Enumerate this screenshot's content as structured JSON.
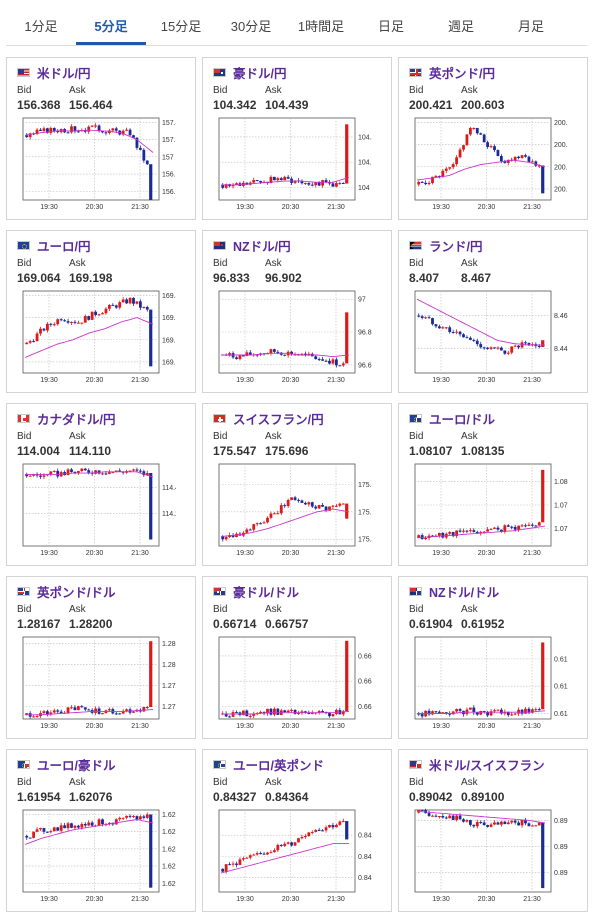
{
  "tabs": [
    {
      "label": "1分足",
      "active": false
    },
    {
      "label": "5分足",
      "active": true
    },
    {
      "label": "15分足",
      "active": false
    },
    {
      "label": "30分足",
      "active": false
    },
    {
      "label": "1時間足",
      "active": false
    },
    {
      "label": "日足",
      "active": false
    },
    {
      "label": "週足",
      "active": false
    },
    {
      "label": "月足",
      "active": false
    }
  ],
  "labels": {
    "bid": "Bid",
    "ask": "Ask"
  },
  "colors": {
    "up": "#dd1a1a",
    "down": "#1a2a99",
    "ma": "#cc33cc",
    "pair": "#5a2a9a",
    "tab_active": "#1e5aa8"
  },
  "cards": [
    {
      "pair": "米ドル/円",
      "flag": "us",
      "bid": "156.368",
      "ask": "156.464",
      "chart_data": {
        "type": "candlestick",
        "x_ticks": [
          "19:30",
          "20:30",
          "21:30"
        ],
        "y_ticks": [
          "157.4",
          "157.2",
          "157",
          "156.8",
          "156.6"
        ],
        "ylim": [
          156.5,
          157.45
        ],
        "trend": [
          157.25,
          157.3,
          157.32,
          157.32,
          157.33,
          157.3,
          157.28,
          156.9,
          156.5
        ],
        "ma": [
          157.25,
          157.28,
          157.3,
          157.3,
          157.31,
          157.3,
          157.28,
          157.2,
          157.05
        ],
        "last_spike": "down"
      }
    },
    {
      "pair": "豪ドル/円",
      "flag": "au",
      "bid": "104.342",
      "ask": "104.439",
      "chart_data": {
        "type": "candlestick",
        "x_ticks": [
          "19:30",
          "20:30",
          "21:30"
        ],
        "y_ticks": [
          "104.4",
          "104.2",
          "104"
        ],
        "ylim": [
          103.9,
          104.55
        ],
        "trend": [
          104.02,
          104.02,
          104.04,
          104.07,
          104.06,
          104.04,
          104.03,
          104.02,
          104.5
        ],
        "ma": [
          104.02,
          104.02,
          104.03,
          104.04,
          104.05,
          104.05,
          104.04,
          104.04,
          104.08
        ],
        "last_spike": "up"
      }
    },
    {
      "pair": "英ポンド/円",
      "flag": "gb",
      "bid": "200.421",
      "ask": "200.603",
      "chart_data": {
        "type": "candlestick",
        "x_ticks": [
          "19:30",
          "20:30",
          "21:30"
        ],
        "y_ticks": [
          "200.9",
          "200.8",
          "200.7",
          "200.6"
        ],
        "ylim": [
          200.55,
          200.92
        ],
        "trend": [
          200.62,
          200.65,
          200.7,
          200.88,
          200.8,
          200.72,
          200.76,
          200.7,
          200.58
        ],
        "ma": [
          200.64,
          200.65,
          200.66,
          200.69,
          200.71,
          200.72,
          200.73,
          200.72,
          200.7
        ],
        "last_spike": "down"
      }
    },
    {
      "pair": "ユーロ/円",
      "flag": "eu",
      "bid": "169.064",
      "ask": "169.198",
      "chart_data": {
        "type": "candlestick",
        "x_ticks": [
          "19:30",
          "20:30",
          "21:30"
        ],
        "y_ticks": [
          "169.4",
          "169.3",
          "169.2",
          "169.1"
        ],
        "ylim": [
          169.05,
          169.42
        ],
        "trend": [
          169.18,
          169.25,
          169.3,
          169.28,
          169.32,
          169.35,
          169.38,
          169.33,
          169.08
        ],
        "ma": [
          169.12,
          169.15,
          169.18,
          169.2,
          169.23,
          169.25,
          169.28,
          169.3,
          169.27
        ],
        "last_spike": "down"
      }
    },
    {
      "pair": "NZドル/円",
      "flag": "nz",
      "bid": "96.833",
      "ask": "96.902",
      "chart_data": {
        "type": "candlestick",
        "x_ticks": [
          "19:30",
          "20:30",
          "21:30"
        ],
        "y_ticks": [
          "97",
          "96.8",
          "96.6"
        ],
        "ylim": [
          96.55,
          97.05
        ],
        "trend": [
          96.66,
          96.65,
          96.67,
          96.68,
          96.67,
          96.65,
          96.63,
          96.6,
          96.92
        ],
        "ma": [
          96.66,
          96.66,
          96.66,
          96.67,
          96.67,
          96.66,
          96.66,
          96.65,
          96.66
        ],
        "last_spike": "up"
      }
    },
    {
      "pair": "ランド/円",
      "flag": "za",
      "bid": "8.407",
      "ask": "8.467",
      "chart_data": {
        "type": "candlestick",
        "x_ticks": [
          "19:30",
          "20:30",
          "21:30"
        ],
        "y_ticks": [
          "8.46",
          "8.44"
        ],
        "ylim": [
          8.425,
          8.475
        ],
        "trend": [
          8.46,
          8.455,
          8.45,
          8.445,
          8.44,
          8.438,
          8.442,
          8.44,
          8.445
        ],
        "ma": [
          8.47,
          8.465,
          8.46,
          8.455,
          8.45,
          8.445,
          8.443,
          8.442,
          8.442
        ],
        "last_spike": "up"
      }
    },
    {
      "pair": "カナダドル/円",
      "flag": "ca",
      "bid": "114.004",
      "ask": "114.110",
      "chart_data": {
        "type": "candlestick",
        "x_ticks": [
          "19:30",
          "20:30",
          "21:30"
        ],
        "y_ticks": [
          "114.4",
          "114.2"
        ],
        "ylim": [
          113.95,
          114.58
        ],
        "trend": [
          114.5,
          114.49,
          114.51,
          114.52,
          114.53,
          114.52,
          114.53,
          114.5,
          114.0
        ],
        "ma": [
          114.5,
          114.5,
          114.5,
          114.51,
          114.51,
          114.52,
          114.52,
          114.52,
          114.48
        ],
        "last_spike": "down"
      }
    },
    {
      "pair": "スイスフラン/円",
      "flag": "ch",
      "bid": "175.547",
      "ask": "175.696",
      "chart_data": {
        "type": "candlestick",
        "x_ticks": [
          "19:30",
          "20:30",
          "21:30"
        ],
        "y_ticks": [
          "175.8",
          "175.6",
          "175.4"
        ],
        "ylim": [
          175.35,
          175.95
        ],
        "trend": [
          175.42,
          175.45,
          175.5,
          175.58,
          175.7,
          175.66,
          175.63,
          175.65,
          175.55
        ],
        "ma": [
          175.42,
          175.43,
          175.45,
          175.48,
          175.52,
          175.56,
          175.6,
          175.62,
          175.6
        ],
        "last_spike": "up"
      }
    },
    {
      "pair": "ユーロ/ドル",
      "flag": "eu",
      "flag2": "us",
      "bid": "1.08107",
      "ask": "1.08135",
      "chart_data": {
        "type": "candlestick",
        "x_ticks": [
          "19:30",
          "20:30",
          "21:30"
        ],
        "y_ticks": [
          "1.08",
          "1.078",
          "1.076"
        ],
        "ylim": [
          1.0745,
          1.0815
        ],
        "trend": [
          1.0752,
          1.0754,
          1.0756,
          1.0757,
          1.0758,
          1.076,
          1.0762,
          1.0764,
          1.081
        ],
        "ma": [
          1.0752,
          1.0753,
          1.0754,
          1.0755,
          1.0756,
          1.0757,
          1.0758,
          1.076,
          1.0762
        ],
        "last_spike": "up"
      }
    },
    {
      "pair": "英ポンド/ドル",
      "flag": "gb",
      "flag2": "us",
      "bid": "1.28167",
      "ask": "1.28200",
      "chart_data": {
        "type": "candlestick",
        "x_ticks": [
          "19:30",
          "20:30",
          "21:30"
        ],
        "y_ticks": [
          "1.282",
          "1.28",
          "1.278",
          "1.276"
        ],
        "ylim": [
          1.2748,
          1.2826
        ],
        "trend": [
          1.2752,
          1.2753,
          1.2755,
          1.2758,
          1.2756,
          1.2755,
          1.2756,
          1.2758,
          1.2822
        ],
        "ma": [
          1.2752,
          1.2752,
          1.2753,
          1.2754,
          1.2755,
          1.2755,
          1.2755,
          1.2756,
          1.2757
        ],
        "last_spike": "up"
      }
    },
    {
      "pair": "豪ドル/ドル",
      "flag": "au",
      "flag2": "us",
      "bid": "0.66714",
      "ask": "0.66757",
      "chart_data": {
        "type": "candlestick",
        "x_ticks": [
          "19:30",
          "20:30",
          "21:30"
        ],
        "y_ticks": [
          "0.666",
          "0.664",
          "0.662"
        ],
        "ylim": [
          0.661,
          0.6675
        ],
        "trend": [
          0.6614,
          0.6614,
          0.6615,
          0.6616,
          0.6615,
          0.6614,
          0.6614,
          0.6615,
          0.6672
        ],
        "ma": [
          0.6614,
          0.6614,
          0.6614,
          0.6615,
          0.6615,
          0.6615,
          0.6615,
          0.6615,
          0.6616
        ],
        "last_spike": "up"
      }
    },
    {
      "pair": "NZドル/ドル",
      "flag": "nz",
      "flag2": "us",
      "bid": "0.61904",
      "ask": "0.61952",
      "chart_data": {
        "type": "candlestick",
        "x_ticks": [
          "19:30",
          "20:30",
          "21:30"
        ],
        "y_ticks": [
          "0.618",
          "0.616",
          "0.614"
        ],
        "ylim": [
          0.6136,
          0.6196
        ],
        "trend": [
          0.614,
          0.614,
          0.6141,
          0.6142,
          0.6141,
          0.614,
          0.6141,
          0.6142,
          0.6192
        ],
        "ma": [
          0.614,
          0.614,
          0.614,
          0.6141,
          0.6141,
          0.6141,
          0.6141,
          0.6141,
          0.6142
        ],
        "last_spike": "up"
      }
    },
    {
      "pair": "ユーロ/豪ドル",
      "flag": "eu",
      "flag2": "au",
      "bid": "1.61954",
      "ask": "1.62076",
      "chart_data": {
        "type": "candlestick",
        "x_ticks": [
          "19:30",
          "20:30",
          "21:30"
        ],
        "y_ticks": [
          "1.628",
          "1.626",
          "1.624",
          "1.622",
          "1.62"
        ],
        "ylim": [
          1.619,
          1.6285
        ],
        "trend": [
          1.6255,
          1.6262,
          1.6265,
          1.6268,
          1.627,
          1.6272,
          1.6275,
          1.6278,
          1.6195
        ],
        "ma": [
          1.6245,
          1.6252,
          1.6257,
          1.6262,
          1.6265,
          1.6268,
          1.6271,
          1.6274,
          1.627
        ],
        "last_spike": "down"
      }
    },
    {
      "pair": "ユーロ/英ポンド",
      "flag": "eu",
      "flag2": "gb",
      "bid": "0.84327",
      "ask": "0.84364",
      "chart_data": {
        "type": "candlestick",
        "x_ticks": [
          "19:30",
          "20:30",
          "21:30"
        ],
        "y_ticks": [
          "0.8435",
          "0.843",
          "0.8425"
        ],
        "ylim": [
          0.84215,
          0.8441
        ],
        "trend": [
          0.8427,
          0.8429,
          0.843,
          0.8432,
          0.8433,
          0.8436,
          0.8437,
          0.8438,
          0.8434
        ],
        "ma": [
          0.8426,
          0.8427,
          0.8428,
          0.8429,
          0.843,
          0.8431,
          0.8432,
          0.8433,
          0.8433
        ],
        "last_spike": "down"
      }
    },
    {
      "pair": "米ドル/スイスフラン",
      "flag": "us",
      "flag2": "ch",
      "bid": "0.89042",
      "ask": "0.89100",
      "chart_data": {
        "type": "candlestick",
        "x_ticks": [
          "19:30",
          "20:30",
          "21:30"
        ],
        "y_ticks": [
          "0.896",
          "0.894",
          "0.892"
        ],
        "ylim": [
          0.8905,
          0.8968
        ],
        "trend": [
          0.8966,
          0.8965,
          0.8962,
          0.8958,
          0.8956,
          0.8957,
          0.8958,
          0.8957,
          0.8908
        ],
        "ma": [
          0.8967,
          0.8966,
          0.8965,
          0.8964,
          0.8963,
          0.8962,
          0.8961,
          0.896,
          0.8958
        ],
        "last_spike": "down"
      }
    }
  ]
}
